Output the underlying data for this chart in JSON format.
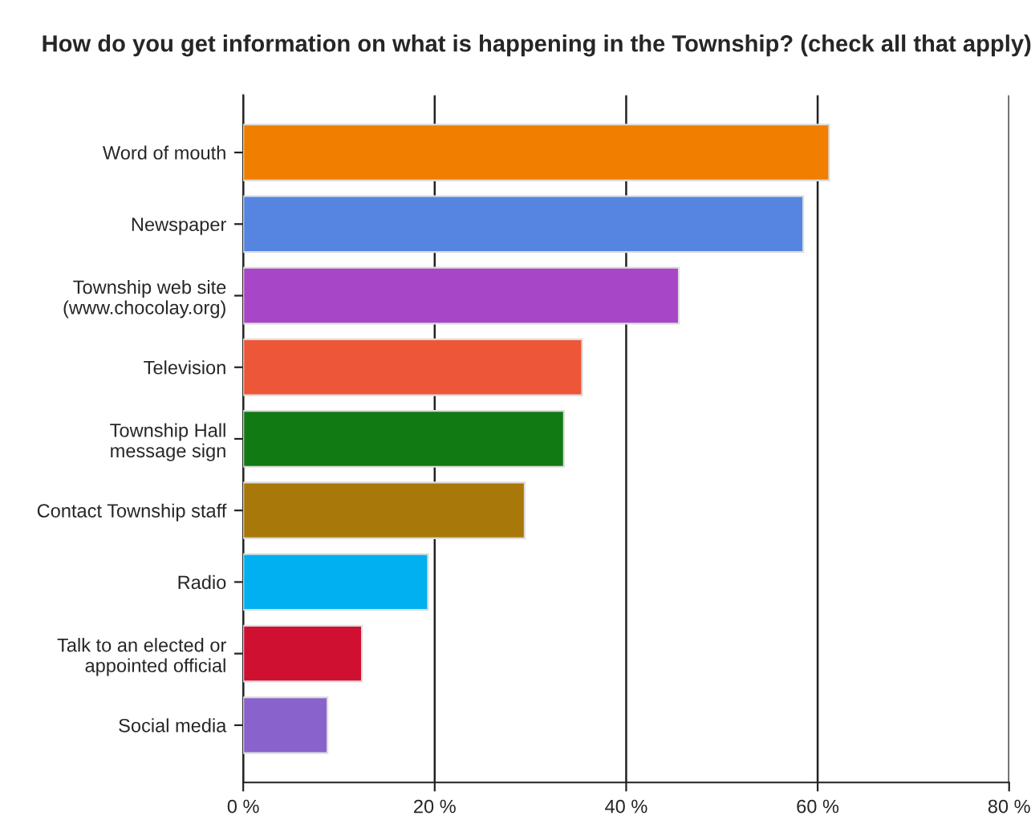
{
  "chart_data": {
    "type": "bar",
    "orientation": "horizontal",
    "title": "How do you get information on what is happening in the Township? (check all that apply)",
    "categories": [
      "Word of mouth",
      "Newspaper",
      "Township web site\n(www.chocolay.org)",
      "Television",
      "Township Hall\nmessage sign",
      "Contact Township staff",
      "Radio",
      "Talk to an elected or\nappointed official",
      "Social media"
    ],
    "values": [
      61.2,
      58.5,
      45.5,
      35.4,
      33.5,
      29.4,
      19.3,
      12.4,
      8.8
    ],
    "colors": [
      "#f07f00",
      "#5585e0",
      "#a846c8",
      "#ee5638",
      "#127a12",
      "#a8780a",
      "#00b0f0",
      "#d01030",
      "#8a62cc"
    ],
    "xlim": [
      0,
      80
    ],
    "xticks": [
      {
        "value": 0,
        "label": "0 %"
      },
      {
        "value": 20,
        "label": "20 %"
      },
      {
        "value": 40,
        "label": "40 %"
      },
      {
        "value": 60,
        "label": "60 %"
      },
      {
        "value": 80,
        "label": "80 %"
      }
    ],
    "grid": "x",
    "legend": false
  }
}
